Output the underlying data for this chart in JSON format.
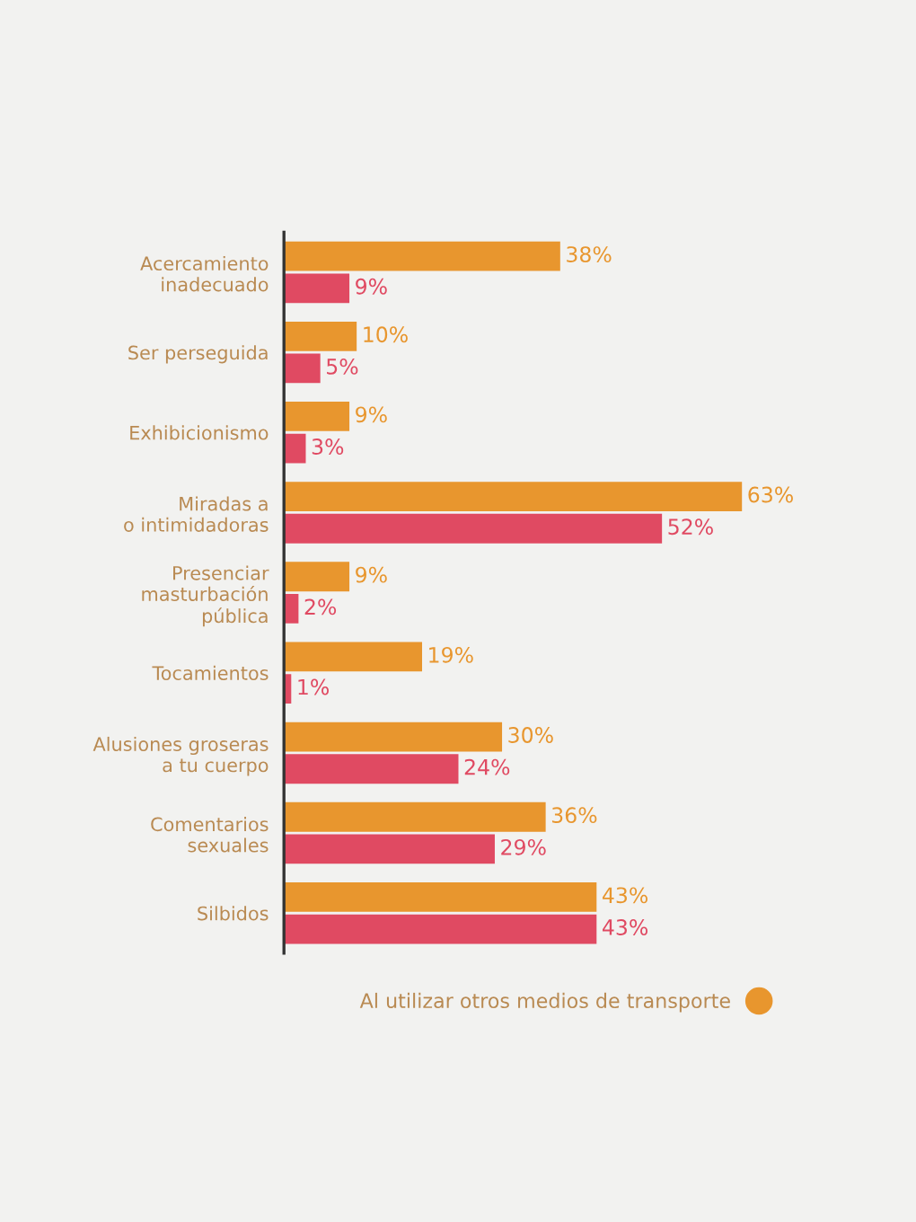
{
  "chart_data": {
    "type": "bar",
    "orientation": "horizontal",
    "categories": [
      "Acercamiento\ninadecuado",
      "Ser perseguida",
      "Exhibicionismo",
      "Miradas a\no intimidadoras",
      "Presenciar\nmasturbación\npública",
      "Tocamientos",
      "Alusiones groseras\na tu cuerpo",
      "Comentarios\nsexuales",
      "Silbidos"
    ],
    "series": [
      {
        "name": "Al utilizar otros medios de transporte",
        "color": "#e8962e",
        "values": [
          38,
          10,
          9,
          63,
          9,
          19,
          30,
          36,
          43
        ],
        "value_labels": [
          "38%",
          "10%",
          "9%",
          "63%",
          "9%",
          "19%",
          "30%",
          "36%",
          "43%"
        ]
      },
      {
        "color": "#e04a62",
        "values": [
          9,
          5,
          3,
          52,
          2,
          1,
          24,
          29,
          43
        ],
        "value_labels": [
          "9%",
          "5%",
          "3%",
          "52%",
          "2%",
          "1%",
          "24%",
          "29%",
          "43%"
        ]
      }
    ],
    "legend": "bottom right",
    "grid": false
  }
}
